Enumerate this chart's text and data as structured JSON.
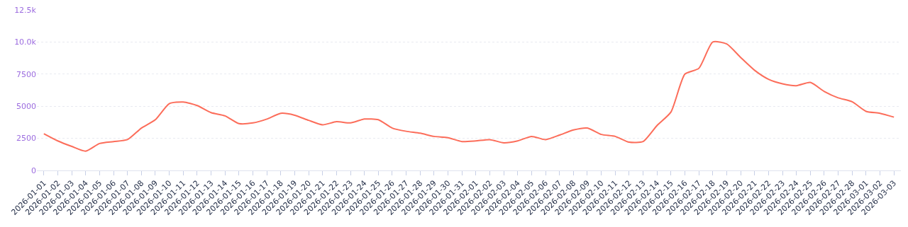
{
  "chart_data": {
    "type": "line",
    "categories": [
      "2026-01-01",
      "2026-01-02",
      "2026-01-03",
      "2026-01-04",
      "2026-01-05",
      "2026-01-06",
      "2026-01-07",
      "2026-01-08",
      "2026-01-09",
      "2026-01-10",
      "2026-01-11",
      "2026-01-12",
      "2026-01-13",
      "2026-01-14",
      "2026-01-15",
      "2026-01-16",
      "2026-01-17",
      "2026-01-18",
      "2026-01-19",
      "2026-01-20",
      "2026-01-21",
      "2026-01-22",
      "2026-01-23",
      "2026-01-24",
      "2026-01-25",
      "2026-01-26",
      "2026-01-27",
      "2026-01-28",
      "2026-01-29",
      "2026-01-30",
      "2026-01-31",
      "2026-02-01",
      "2026-02-02",
      "2026-02-03",
      "2026-02-04",
      "2026-02-05",
      "2026-02-06",
      "2026-02-07",
      "2026-02-08",
      "2026-02-09",
      "2026-02-10",
      "2026-02-11",
      "2026-02-12",
      "2026-02-13",
      "2026-02-14",
      "2026-02-15",
      "2026-02-16",
      "2026-02-17",
      "2026-02-18",
      "2026-02-19",
      "2026-02-20",
      "2026-02-21",
      "2026-02-22",
      "2026-02-23",
      "2026-02-24",
      "2026-02-25",
      "2026-02-26",
      "2026-02-27",
      "2026-02-28",
      "2026-03-01",
      "2026-03-02",
      "2026-03-03"
    ],
    "series": [
      {
        "color": "#fc6d5a",
        "values": [
          2860,
          2300,
          1870,
          1500,
          2100,
          2250,
          2400,
          3300,
          3950,
          5200,
          5330,
          5050,
          4500,
          4250,
          3650,
          3700,
          4000,
          4450,
          4300,
          3900,
          3550,
          3800,
          3700,
          4000,
          3950,
          3300,
          3050,
          2900,
          2650,
          2550,
          2250,
          2300,
          2400,
          2150,
          2300,
          2650,
          2400,
          2750,
          3150,
          3300,
          2800,
          2650,
          2200,
          2250,
          3500,
          4550,
          7500,
          7950,
          10000,
          9850,
          8800,
          7800,
          7100,
          6750,
          6600,
          6850,
          6150,
          5650,
          5350,
          4600,
          4450,
          4150
        ]
      }
    ],
    "ylim": [
      0,
      12500
    ],
    "yticks": [
      0,
      2500,
      5000,
      7500,
      {
        "value": 10000,
        "label": "10.0k"
      },
      {
        "value": 12500,
        "label": "12.5k"
      }
    ],
    "grid": "y",
    "marker": "none",
    "line_style": "solid",
    "legend": false
  }
}
